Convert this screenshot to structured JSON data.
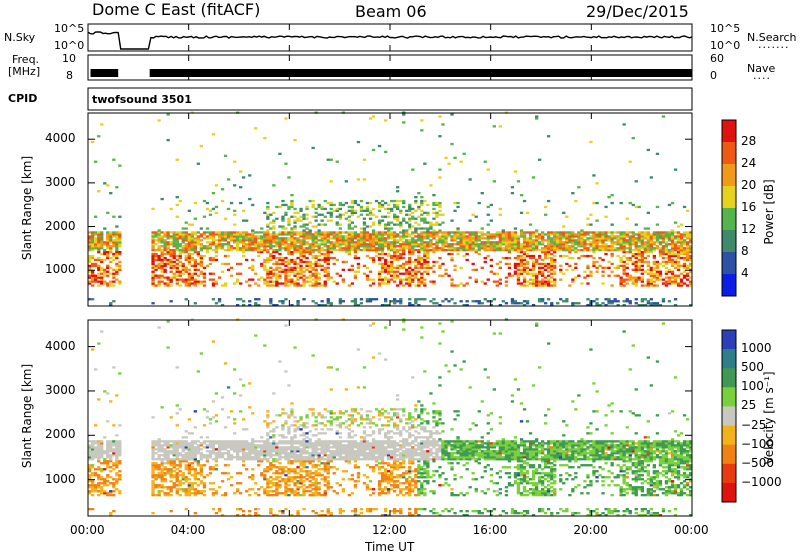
{
  "header": {
    "title": "Dome C East (fitACF)",
    "beam": "Beam 06",
    "date": "29/Dec/2015"
  },
  "top_panels": {
    "nsky_label": "N.Sky",
    "nsky_ticks": [
      "10^5",
      "10^0"
    ],
    "nsearch_label": "N.Search",
    "nsearch_ticks": [
      "10^5",
      "10^0"
    ],
    "freq_label_1": "Freq.",
    "freq_label_2": "[MHz]",
    "freq_ticks": [
      "10",
      "8"
    ],
    "nave_label": "Nave",
    "nave_ticks": [
      "60",
      "0"
    ],
    "cpid_label": "CPID",
    "cpid_value": "twofsound 3501"
  },
  "chart_data": [
    {
      "type": "heatmap",
      "name": "power",
      "ylabel": "Slant Range [km]",
      "xlabel": "Time UT",
      "x_ticks": [
        "00:00",
        "04:00",
        "08:00",
        "12:00",
        "16:00",
        "20:00",
        "00:00"
      ],
      "y_ticks": [
        1000,
        2000,
        3000,
        4000
      ],
      "ylim": [
        180,
        4600
      ],
      "xlim_hours": [
        0,
        24
      ],
      "data_gap_hours": [
        1.25,
        2.45
      ],
      "colorbar_label": "Power [dB]",
      "colorbar_ticks": [
        4,
        8,
        12,
        16,
        20,
        24,
        28
      ],
      "colorbar_colors": [
        "#0a1ee6",
        "#2c52a8",
        "#3f8a6a",
        "#54b54b",
        "#e6d21e",
        "#f09a1a",
        "#ee5a14",
        "#e0120e"
      ]
    },
    {
      "type": "heatmap",
      "name": "velocity",
      "ylabel": "Slant Range [km]",
      "xlabel": "Time UT",
      "x_ticks": [
        "00:00",
        "04:00",
        "08:00",
        "12:00",
        "16:00",
        "20:00",
        "00:00"
      ],
      "y_ticks": [
        1000,
        2000,
        3000,
        4000
      ],
      "ylim": [
        180,
        4600
      ],
      "xlim_hours": [
        0,
        24
      ],
      "data_gap_hours": [
        1.25,
        2.45
      ],
      "colorbar_label": "Velocity [m s⁻¹]",
      "colorbar_ticks": [
        1000,
        500,
        100,
        25,
        -25,
        -100,
        -500,
        -1000
      ],
      "colorbar_colors": [
        "#2a3fb8",
        "#2f7f8a",
        "#3e9a52",
        "#7ad03a",
        "#c8c8c0",
        "#f3b21a",
        "#f08214",
        "#e83c10",
        "#e0120e"
      ]
    }
  ],
  "x_title": "Time UT"
}
